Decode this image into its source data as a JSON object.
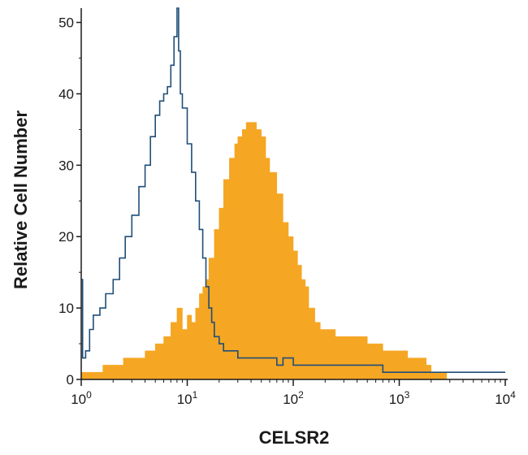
{
  "chart_data": {
    "type": "area",
    "xlabel": "CELSR2",
    "ylabel": "Relative Cell Number",
    "x_scale": "log",
    "xlim": [
      1,
      10000
    ],
    "ylim": [
      0,
      52
    ],
    "x_ticks": [
      {
        "base": "10",
        "exp": "0"
      },
      {
        "base": "10",
        "exp": "1"
      },
      {
        "base": "10",
        "exp": "2"
      },
      {
        "base": "10",
        "exp": "3"
      },
      {
        "base": "10",
        "exp": "4"
      }
    ],
    "y_ticks": [
      "0",
      "10",
      "20",
      "30",
      "40",
      "50"
    ],
    "grid": false,
    "legend": "none",
    "series": [
      {
        "style": "filled",
        "color": "#F5A623",
        "x": [
          1,
          1.3,
          1.6,
          2,
          2.5,
          3,
          4,
          5,
          6,
          7,
          8,
          9,
          10,
          11,
          12,
          13,
          14,
          15,
          16,
          18,
          20,
          22,
          25,
          28,
          30,
          33,
          36,
          40,
          45,
          50,
          55,
          60,
          70,
          80,
          90,
          100,
          110,
          120,
          130,
          140,
          160,
          180,
          200,
          250,
          300,
          350,
          400,
          450,
          500,
          600,
          700,
          800,
          1000,
          1200,
          1500,
          1800,
          2000,
          2500,
          2700,
          2800
        ],
        "y": [
          1,
          1,
          2,
          2,
          3,
          3,
          4,
          5,
          6,
          8,
          10,
          7,
          9,
          8,
          10,
          12,
          13,
          14,
          17,
          21,
          24,
          28,
          31,
          33,
          34,
          35,
          36,
          36,
          35,
          34,
          31,
          29,
          26,
          22,
          20,
          18,
          16,
          14,
          13,
          10,
          8,
          7,
          7,
          6,
          6,
          6,
          6,
          6,
          5,
          5,
          4,
          4,
          4,
          3,
          3,
          2,
          1,
          1,
          1,
          0
        ]
      },
      {
        "style": "outline",
        "color": "#1F4E79",
        "x": [
          1,
          1.03,
          1.1,
          1.2,
          1.3,
          1.5,
          1.7,
          2,
          2.3,
          2.6,
          3,
          3.5,
          4,
          4.5,
          5,
          5.5,
          6,
          6.5,
          7,
          7.5,
          8,
          8.3,
          8.6,
          9,
          10,
          11,
          12,
          13,
          14,
          15,
          16,
          17,
          18,
          20,
          22,
          25,
          30,
          35,
          40,
          50,
          60,
          70,
          80,
          100,
          130,
          200,
          300,
          500,
          700,
          1000,
          1500,
          3000,
          6000,
          9500,
          10000
        ],
        "y": [
          14,
          3,
          4,
          7,
          9,
          10,
          12,
          14,
          17,
          20,
          23,
          27,
          30,
          34,
          37,
          39,
          40,
          41,
          44,
          48,
          52,
          46,
          40,
          38,
          33,
          29,
          25,
          21,
          17,
          13,
          10,
          8,
          6,
          5,
          4,
          4,
          3,
          3,
          3,
          3,
          3,
          2,
          3,
          2,
          2,
          2,
          2,
          2,
          1,
          1,
          1,
          1,
          1,
          1,
          1
        ]
      }
    ]
  }
}
